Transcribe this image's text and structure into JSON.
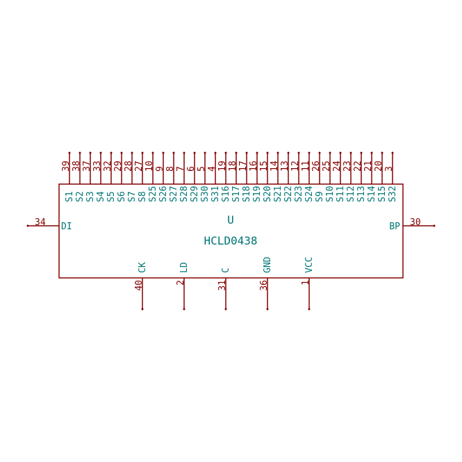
{
  "component": {
    "reference": "U",
    "value": "HCLD0438",
    "line_color": "#840000",
    "pin_number_color": "#840000",
    "pin_name_color": "#007575",
    "label_color": "#007575"
  },
  "top_pins": [
    {
      "name": "S1",
      "number": "39"
    },
    {
      "name": "S2",
      "number": "38"
    },
    {
      "name": "S3",
      "number": "37"
    },
    {
      "name": "S4",
      "number": "33"
    },
    {
      "name": "S5",
      "number": "32"
    },
    {
      "name": "S6",
      "number": "29"
    },
    {
      "name": "S7",
      "number": "28"
    },
    {
      "name": "S8",
      "number": "27"
    },
    {
      "name": "S25",
      "number": "10"
    },
    {
      "name": "S26",
      "number": "9"
    },
    {
      "name": "S27",
      "number": "8"
    },
    {
      "name": "S28",
      "number": "7"
    },
    {
      "name": "S29",
      "number": "6"
    },
    {
      "name": "S30",
      "number": "5"
    },
    {
      "name": "S31",
      "number": "4"
    },
    {
      "name": "S16",
      "number": "19"
    },
    {
      "name": "S17",
      "number": "18"
    },
    {
      "name": "S18",
      "number": "17"
    },
    {
      "name": "S19",
      "number": "16"
    },
    {
      "name": "S20",
      "number": "15"
    },
    {
      "name": "S21",
      "number": "14"
    },
    {
      "name": "S22",
      "number": "13"
    },
    {
      "name": "S23",
      "number": "12"
    },
    {
      "name": "S24",
      "number": "11"
    },
    {
      "name": "S9",
      "number": "26"
    },
    {
      "name": "S10",
      "number": "25"
    },
    {
      "name": "S11",
      "number": "24"
    },
    {
      "name": "S12",
      "number": "23"
    },
    {
      "name": "S13",
      "number": "22"
    },
    {
      "name": "S14",
      "number": "21"
    },
    {
      "name": "S15",
      "number": "20"
    },
    {
      "name": "S32",
      "number": "3"
    }
  ],
  "bottom_pins": [
    {
      "name": "CK",
      "number": "40"
    },
    {
      "name": "LD",
      "number": "2"
    },
    {
      "name": "C",
      "number": "31"
    },
    {
      "name": "GND",
      "number": "36"
    },
    {
      "name": "VCC",
      "number": "1"
    }
  ],
  "left_pin": {
    "name": "DI",
    "number": "34"
  },
  "right_pin": {
    "name": "BP",
    "number": "30"
  }
}
